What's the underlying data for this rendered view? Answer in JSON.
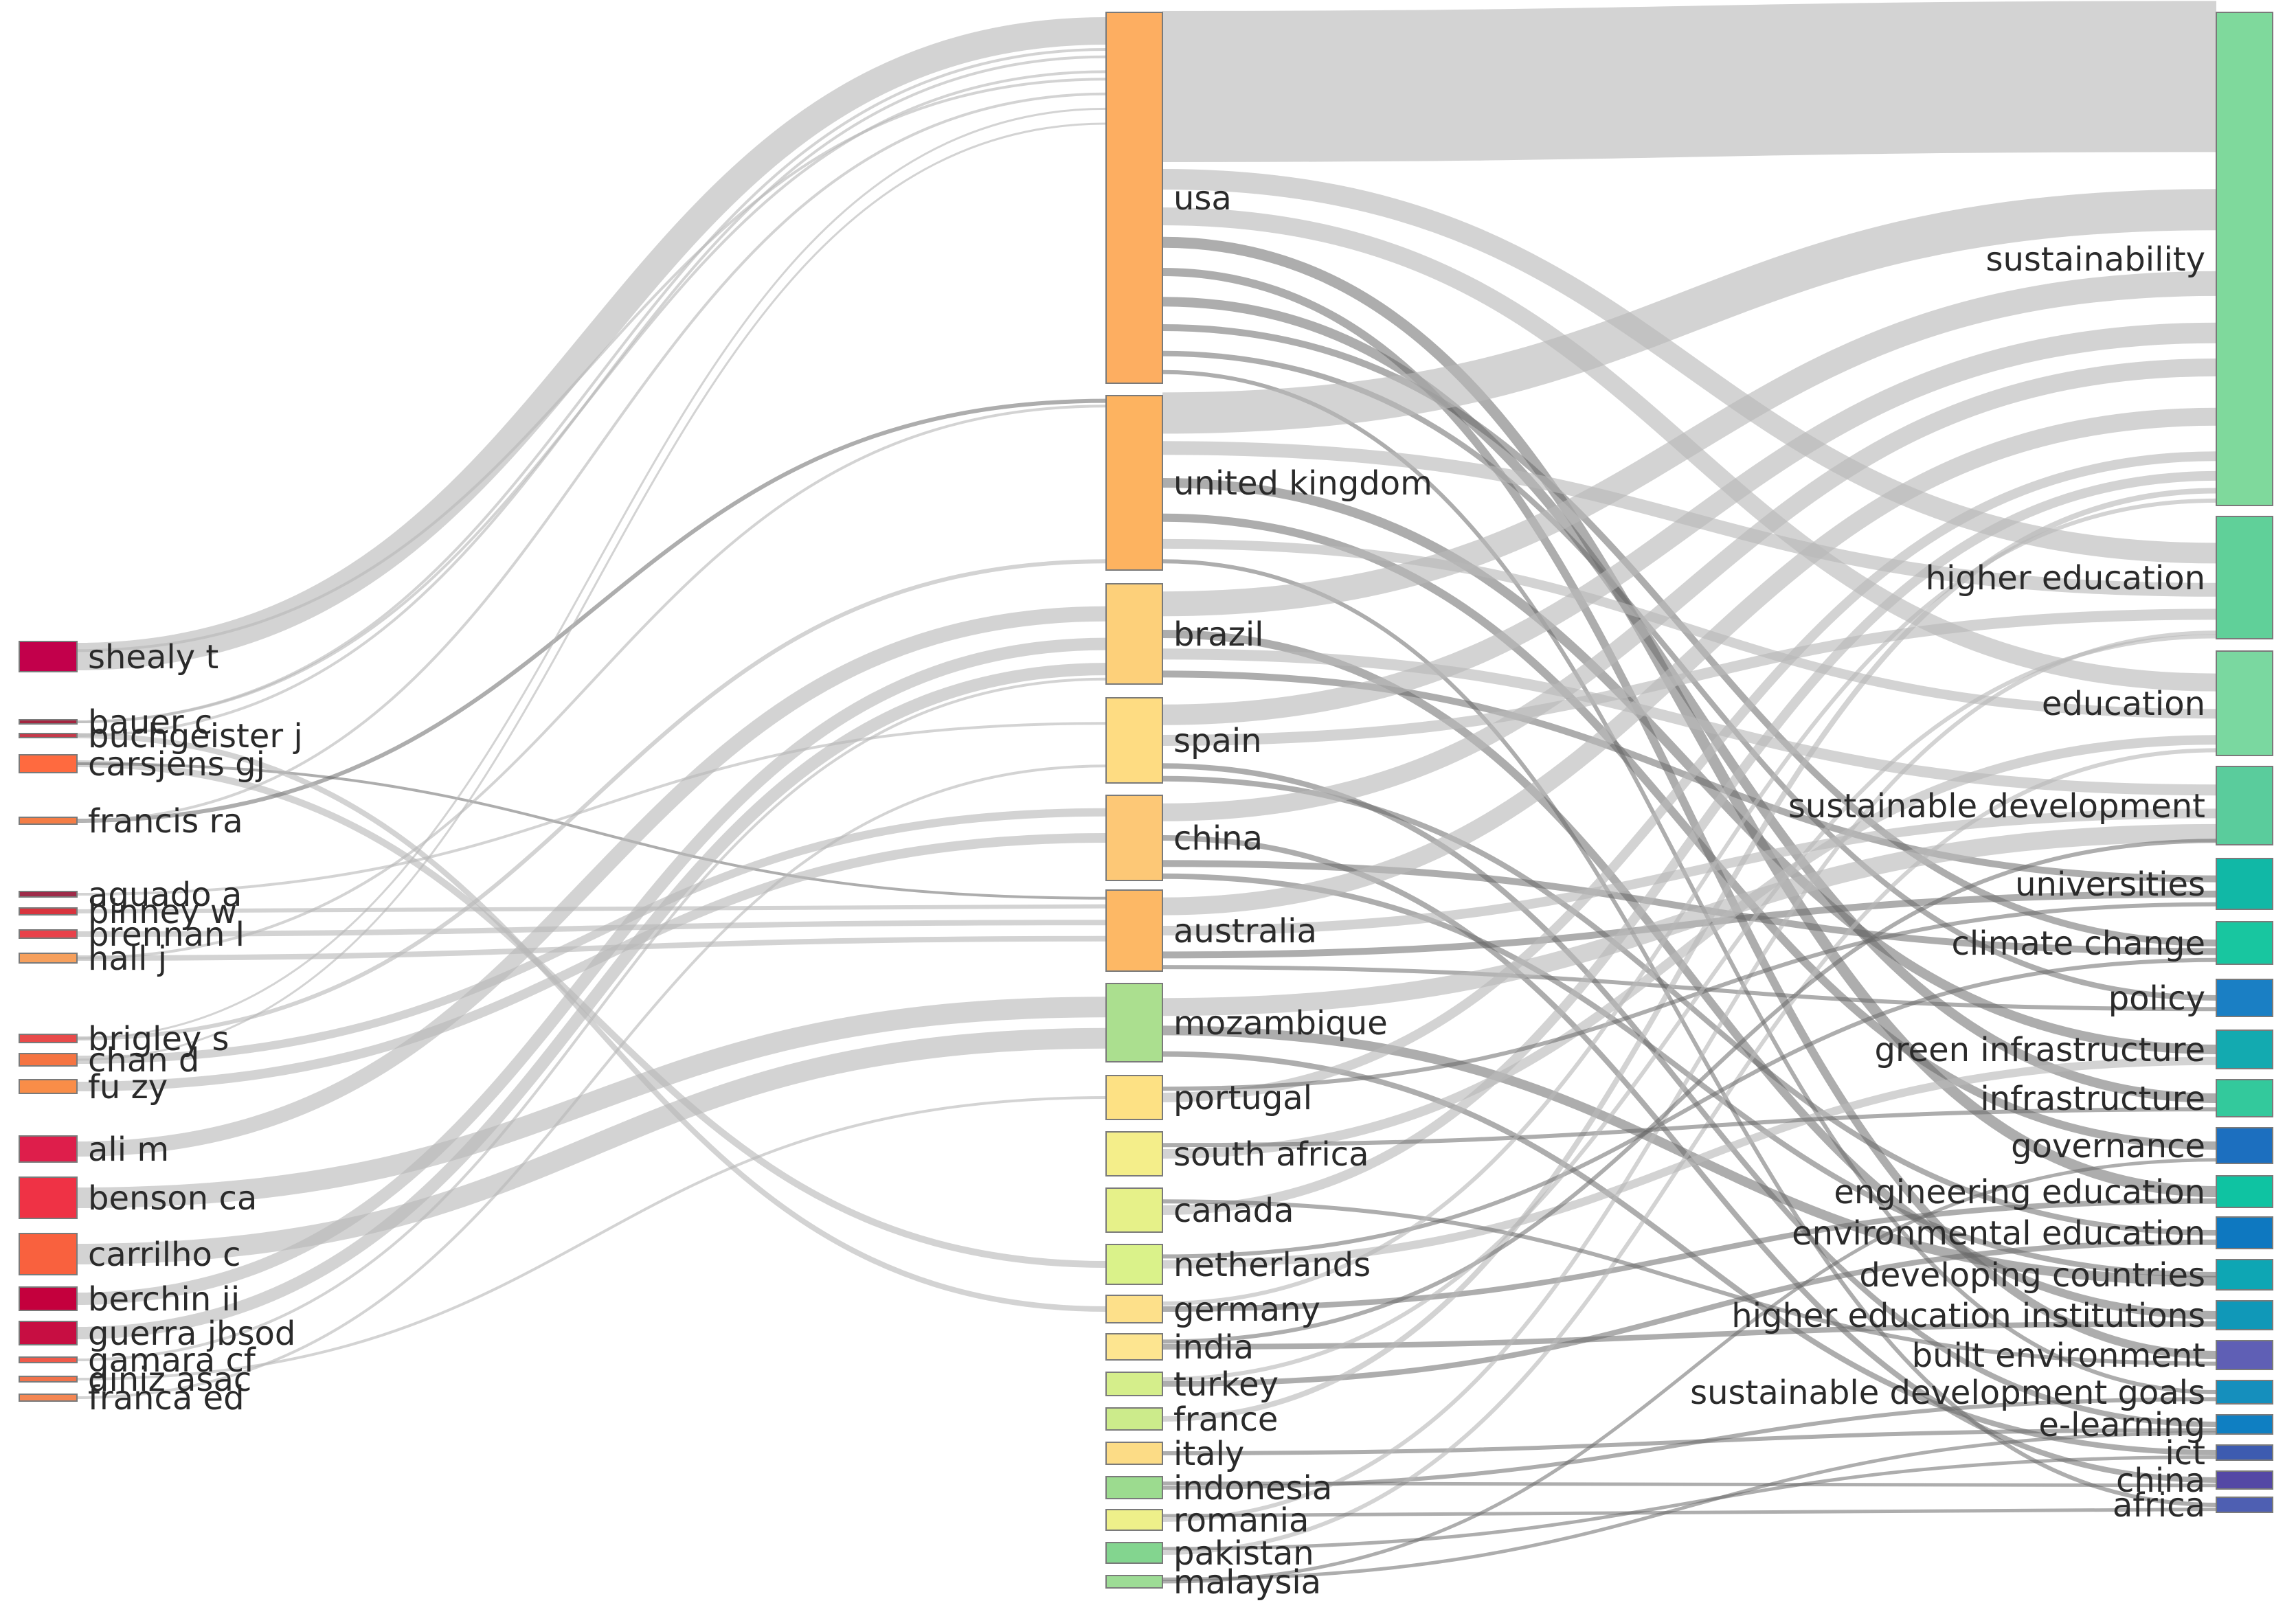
{
  "diagram": {
    "type": "three-field-plot",
    "columns": [
      {
        "role": "authors",
        "nodes": [
          {
            "id": "a_shealy",
            "label": "shealy t",
            "color": "#c2004b",
            "weight": 11
          },
          {
            "id": "a_bauer",
            "label": "bauer c",
            "color": "#a3243f",
            "weight": 1
          },
          {
            "id": "a_buchgeister",
            "label": "buchgeister j",
            "color": "#c53a4a",
            "weight": 1
          },
          {
            "id": "a_carsjens",
            "label": "carsjens gj",
            "color": "#ff6a3f",
            "weight": 3
          },
          {
            "id": "a_francis",
            "label": "francis ra",
            "color": "#f47d46",
            "weight": 1
          },
          {
            "id": "a_aguado",
            "label": "aguado a",
            "color": "#9e2b49",
            "weight": 1
          },
          {
            "id": "a_binney",
            "label": "binney w",
            "color": "#d8343e",
            "weight": 1.2
          },
          {
            "id": "a_brennan",
            "label": "brennan l",
            "color": "#e8414a",
            "weight": 1.2
          },
          {
            "id": "a_hall",
            "label": "hall j",
            "color": "#f6a05d",
            "weight": 1.2
          },
          {
            "id": "a_brigley",
            "label": "brigley s",
            "color": "#e84a4a",
            "weight": 1.2
          },
          {
            "id": "a_chan",
            "label": "chan d",
            "color": "#f57442",
            "weight": 2
          },
          {
            "id": "a_fu",
            "label": "fu zy",
            "color": "#f98d48",
            "weight": 2
          },
          {
            "id": "a_ali",
            "label": "ali m",
            "color": "#de1e4b",
            "weight": 7
          },
          {
            "id": "a_benson",
            "label": "benson ca",
            "color": "#ef3245",
            "weight": 12
          },
          {
            "id": "a_carrilho",
            "label": "carrilho c",
            "color": "#f9613e",
            "weight": 12
          },
          {
            "id": "a_berchin",
            "label": "berchin ii",
            "color": "#c4003d",
            "weight": 6
          },
          {
            "id": "a_guerra",
            "label": "guerra jbsod",
            "color": "#c70e42",
            "weight": 6
          },
          {
            "id": "a_gamara",
            "label": "gamara cf",
            "color": "#f05a4a",
            "weight": 1
          },
          {
            "id": "a_diniz",
            "label": "diniz asac",
            "color": "#f0734c",
            "weight": 1
          },
          {
            "id": "a_franca",
            "label": "franca ed",
            "color": "#f48753",
            "weight": 1
          }
        ]
      },
      {
        "role": "countries",
        "nodes": [
          {
            "id": "c_usa",
            "label": "usa",
            "color": "#fdae61",
            "weight": 90
          },
          {
            "id": "c_uk",
            "label": "united kingdom",
            "color": "#fdb360",
            "weight": 42
          },
          {
            "id": "c_brazil",
            "label": "brazil",
            "color": "#fdd07a",
            "weight": 23
          },
          {
            "id": "c_spain",
            "label": "spain",
            "color": "#fedc82",
            "weight": 19
          },
          {
            "id": "c_china",
            "label": "china",
            "color": "#fdc876",
            "weight": 19
          },
          {
            "id": "c_australia",
            "label": "australia",
            "color": "#fdb865",
            "weight": 18
          },
          {
            "id": "c_mozambique",
            "label": "mozambique",
            "color": "#abdf8f",
            "weight": 18
          },
          {
            "id": "c_portugal",
            "label": "portugal",
            "color": "#fde184",
            "weight": 10
          },
          {
            "id": "c_southafrica",
            "label": "south africa",
            "color": "#f4ee8a",
            "weight": 10
          },
          {
            "id": "c_canada",
            "label": "canada",
            "color": "#e6f189",
            "weight": 10
          },
          {
            "id": "c_netherlands",
            "label": "netherlands",
            "color": "#daf28a",
            "weight": 9
          },
          {
            "id": "c_germany",
            "label": "germany",
            "color": "#fde08a",
            "weight": 6
          },
          {
            "id": "c_india",
            "label": "india",
            "color": "#fde590",
            "weight": 6
          },
          {
            "id": "c_turkey",
            "label": "turkey",
            "color": "#d5ee8b",
            "weight": 5
          },
          {
            "id": "c_france",
            "label": "france",
            "color": "#cceb8b",
            "weight": 5
          },
          {
            "id": "c_italy",
            "label": "italy",
            "color": "#fcdc86",
            "weight": 5
          },
          {
            "id": "c_indonesia",
            "label": "indonesia",
            "color": "#9cdb8f",
            "weight": 5
          },
          {
            "id": "c_romania",
            "label": "romania",
            "color": "#eef08a",
            "weight": 4
          },
          {
            "id": "c_pakistan",
            "label": "pakistan",
            "color": "#83d58f",
            "weight": 4
          },
          {
            "id": "c_malaysia",
            "label": "malaysia",
            "color": "#9ddc95",
            "weight": 3
          }
        ]
      },
      {
        "role": "keywords",
        "nodes": [
          {
            "id": "k_sustainability",
            "label": "sustainability",
            "color": "#7fd99c",
            "weight": 120
          },
          {
            "id": "k_highered",
            "label": "higher education",
            "color": "#60d099",
            "weight": 30
          },
          {
            "id": "k_education",
            "label": "education",
            "color": "#7ad8a0",
            "weight": 24
          },
          {
            "id": "k_sustdev",
            "label": "sustainable development",
            "color": "#5acc9c",
            "weight": 19
          },
          {
            "id": "k_universities",
            "label": "universities",
            "color": "#11b8a6",
            "weight": 11
          },
          {
            "id": "k_climate",
            "label": "climate change",
            "color": "#18c6a0",
            "weight": 11
          },
          {
            "id": "k_policy",
            "label": "policy",
            "color": "#1a7fc4",
            "weight": 9
          },
          {
            "id": "k_greeninfra",
            "label": "green infrastructure",
            "color": "#13aab0",
            "weight": 9
          },
          {
            "id": "k_infrastructure",
            "label": "infrastructure",
            "color": "#33c99c",
            "weight": 9
          },
          {
            "id": "k_governance",
            "label": "governance",
            "color": "#1c6fbf",
            "weight": 9
          },
          {
            "id": "k_engedu",
            "label": "engineering education",
            "color": "#0fc3a2",
            "weight": 8
          },
          {
            "id": "k_envedu",
            "label": "environmental education",
            "color": "#0e78c0",
            "weight": 8
          },
          {
            "id": "k_developing",
            "label": "developing countries",
            "color": "#0ea6b4",
            "weight": 7
          },
          {
            "id": "k_hei",
            "label": "higher education institutions",
            "color": "#1098b8",
            "weight": 7
          },
          {
            "id": "k_builtenv",
            "label": "built environment",
            "color": "#5f5fb5",
            "weight": 7
          },
          {
            "id": "k_sdgs",
            "label": "sustainable development goals",
            "color": "#158fbd",
            "weight": 5
          },
          {
            "id": "k_elearning",
            "label": "e-learning",
            "color": "#0f7fc2",
            "weight": 4
          },
          {
            "id": "k_ict",
            "label": "ict",
            "color": "#3d5bb0",
            "weight": 3
          },
          {
            "id": "k_china",
            "label": "china",
            "color": "#5448a5",
            "weight": 3
          },
          {
            "id": "k_africa",
            "label": "africa",
            "color": "#4e5fb2",
            "weight": 3
          }
        ]
      }
    ]
  }
}
